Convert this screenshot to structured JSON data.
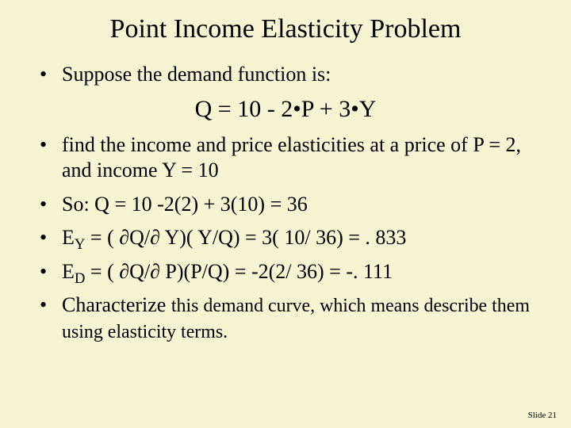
{
  "colors": {
    "background": "#f7f4d3",
    "text": "#000000"
  },
  "typography": {
    "family": "Times New Roman",
    "title_fontsize": 34,
    "body_fontsize": 26,
    "equation_fontsize": 30,
    "footer_fontsize": 11
  },
  "title": "Point Income Elasticity Problem",
  "bullets": {
    "b1": "Suppose the demand function is:",
    "equation": "Q = 10 - 2•P + 3•Y",
    "b2": "find the income and price elasticities at a price of P = 2, and income Y = 10",
    "b3": "So:  Q = 10 -2(2) + 3(10) = 36",
    "b4_pre": "E",
    "b4_sub": "Y",
    "b4_rest": " =  ( ∂Q/∂ Y)( Y/Q) = 3( 10/ 36) = . 833",
    "b5_pre": "E",
    "b5_sub": "D",
    "b5_rest": " =  ( ∂Q/∂ P)(P/Q) = -2(2/ 36) = -. 111",
    "b6_lead": "Characterize ",
    "b6_rest": "this demand curve, which means describe them using elasticity terms."
  },
  "footer": "Slide 21"
}
